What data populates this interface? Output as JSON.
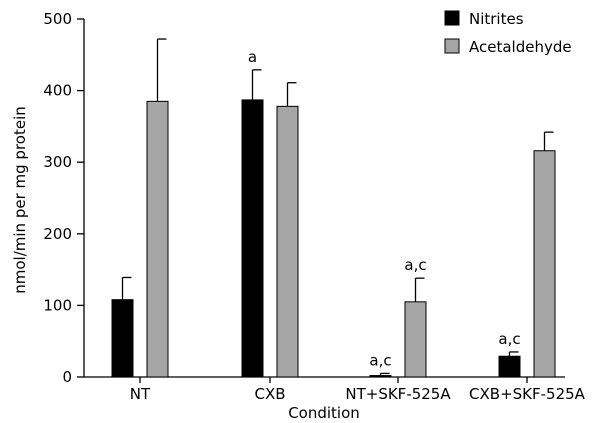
{
  "chart_data": {
    "type": "bar",
    "title": "",
    "xlabel": "Condition",
    "ylabel": "nmol/min per mg protein",
    "ylim": [
      0,
      500
    ],
    "yticks": [
      0,
      100,
      200,
      300,
      400,
      500
    ],
    "grid": false,
    "legend_position": "top-right",
    "categories": [
      "NT",
      "CXB",
      "NT+SKF-525A",
      "CXB+SKF-525A"
    ],
    "series": [
      {
        "name": "Nitrites",
        "color": "#000000",
        "values": [
          108,
          387,
          2,
          29
        ],
        "errors": [
          31,
          42,
          3,
          6
        ],
        "annotations": [
          "",
          "a",
          "a,c",
          "a,c"
        ]
      },
      {
        "name": "Acetaldehyde",
        "color": "#a6a6a6",
        "values": [
          385,
          378,
          105,
          316
        ],
        "errors": [
          87,
          33,
          33,
          26
        ],
        "annotations": [
          "",
          "",
          "a,c",
          ""
        ]
      }
    ]
  }
}
